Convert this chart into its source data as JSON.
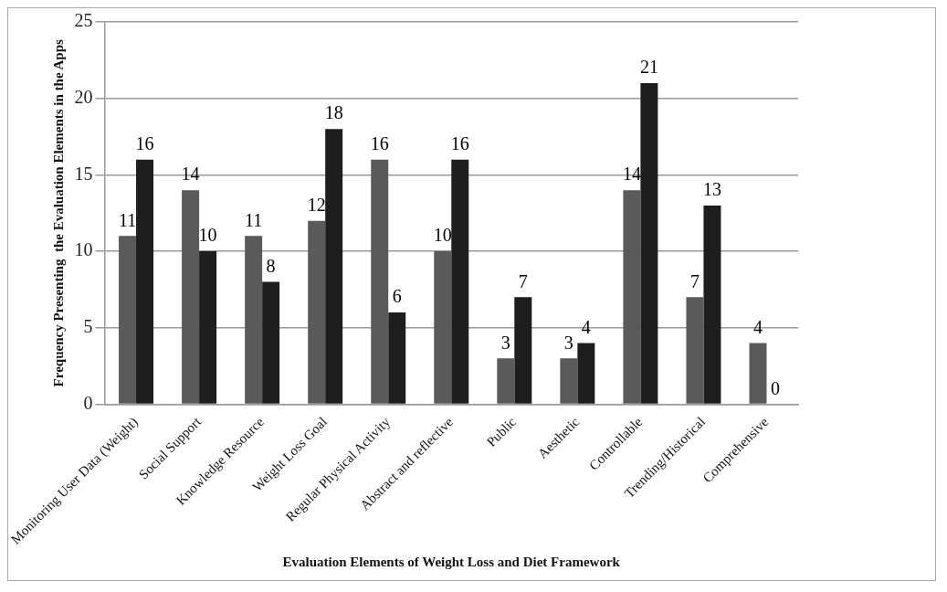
{
  "chart_data": {
    "type": "bar",
    "xlabel": "Evaluation Elements of Weight Loss and Diet Framework",
    "ylabel": "Frequency Presenting  the Evaluation Elements in the Apps",
    "categories": [
      "Monitoring User Data (Weight)",
      "Social Support",
      "Knowledge Resource",
      "Weight Loss Goal",
      "Regular Physical Activity",
      "Abstract and reflective",
      "Public",
      "Aesthetic",
      "Controllable",
      "Trending/Historical",
      "Comprehensive"
    ],
    "series": [
      {
        "color": "#5a5a5a",
        "values": [
          11,
          14,
          11,
          12,
          16,
          10,
          3,
          3,
          14,
          7,
          4
        ]
      },
      {
        "color": "#1e1e1e",
        "values": [
          16,
          10,
          8,
          18,
          6,
          16,
          7,
          4,
          21,
          13,
          0
        ]
      }
    ],
    "ylim": [
      0,
      25
    ],
    "yticks": [
      0,
      5,
      10,
      15,
      20,
      25
    ],
    "grid": "y",
    "data_labels": true
  }
}
